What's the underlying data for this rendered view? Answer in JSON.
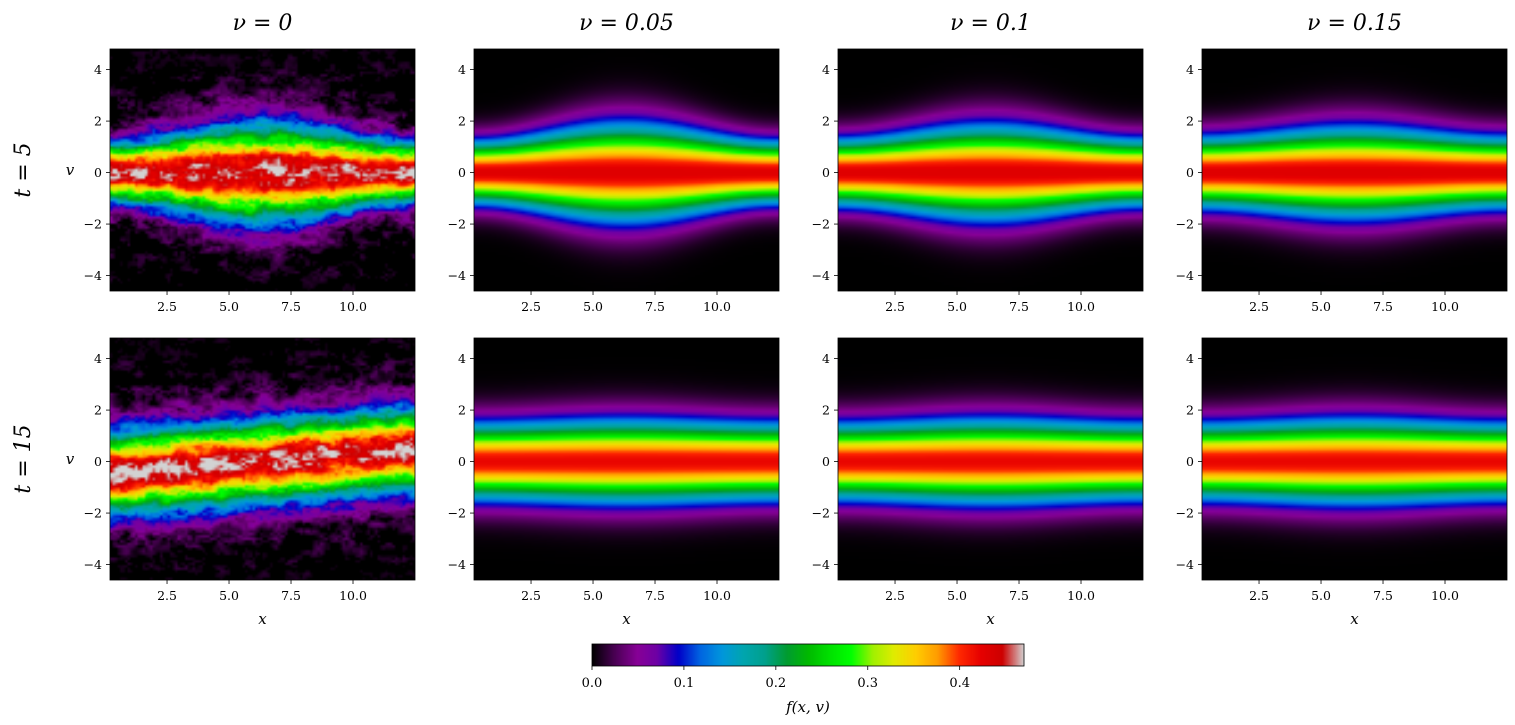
{
  "chart_data": {
    "type": "heatmap",
    "colormap": "nipy_spectral",
    "columns": [
      {
        "label": "ν = 0",
        "nu": 0
      },
      {
        "label": "ν = 0.05",
        "nu": 0.05
      },
      {
        "label": "ν = 0.1",
        "nu": 0.1
      },
      {
        "label": "ν = 0.15",
        "nu": 0.15
      }
    ],
    "rows": [
      {
        "label": "t = 5",
        "t": 5
      },
      {
        "label": "t = 15",
        "t": 15
      }
    ],
    "xlabel": "x",
    "ylabel": "v",
    "xlim": [
      0.2,
      12.5
    ],
    "ylim": [
      -4.6,
      4.8
    ],
    "xticks": [
      2.5,
      5.0,
      7.5,
      10.0
    ],
    "xtick_labels": [
      "2.5",
      "5.0",
      "7.5",
      "10.0"
    ],
    "yticks": [
      -4,
      -2,
      0,
      2,
      4
    ],
    "ytick_labels": [
      "−4",
      "−2",
      "0",
      "2",
      "4"
    ],
    "colorbar": {
      "label": "f(x, v)",
      "range": [
        0.0,
        0.47
      ],
      "ticks": [
        0.0,
        0.1,
        0.2,
        0.3,
        0.4
      ],
      "tick_labels": [
        "0.0",
        "0.1",
        "0.2",
        "0.3",
        "0.4"
      ]
    },
    "panels": [
      {
        "row": 0,
        "col": 0,
        "peak": 0.46,
        "width": 1.0,
        "wave_amp": 0.25,
        "tilt": 0.0,
        "noise": 0.075
      },
      {
        "row": 0,
        "col": 1,
        "peak": 0.43,
        "width": 1.0,
        "wave_amp": 0.22,
        "tilt": 0.0,
        "noise": 0.0
      },
      {
        "row": 0,
        "col": 2,
        "peak": 0.43,
        "width": 1.0,
        "wave_amp": 0.17,
        "tilt": 0.0,
        "noise": 0.0
      },
      {
        "row": 0,
        "col": 3,
        "peak": 0.43,
        "width": 1.0,
        "wave_amp": 0.12,
        "tilt": 0.0,
        "noise": 0.0
      },
      {
        "row": 1,
        "col": 0,
        "peak": 0.46,
        "width": 1.05,
        "wave_amp": 0.0,
        "tilt": 0.45,
        "noise": 0.075
      },
      {
        "row": 1,
        "col": 1,
        "peak": 0.42,
        "width": 1.0,
        "wave_amp": 0.04,
        "tilt": 0.0,
        "noise": 0.0
      },
      {
        "row": 1,
        "col": 2,
        "peak": 0.42,
        "width": 1.0,
        "wave_amp": 0.05,
        "tilt": 0.0,
        "noise": 0.0
      },
      {
        "row": 1,
        "col": 3,
        "peak": 0.42,
        "width": 1.0,
        "wave_amp": 0.05,
        "tilt": 0.0,
        "noise": 0.0
      }
    ]
  }
}
